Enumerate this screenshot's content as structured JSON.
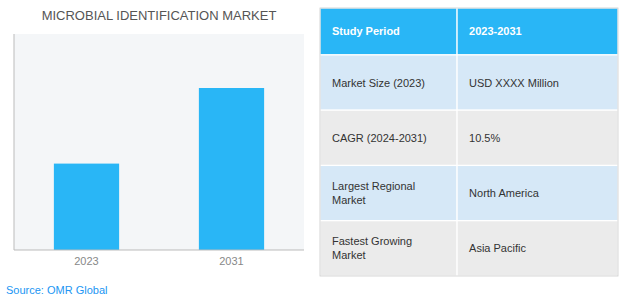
{
  "chart_data": {
    "type": "bar",
    "title": "MICROBIAL IDENTIFICATION MARKET",
    "categories": [
      "2023",
      "2031"
    ],
    "values": [
      0.4,
      0.75
    ],
    "color": "#29B6F6",
    "ylim": [
      0,
      1
    ],
    "tick_labels": "x",
    "source": "Source: OMR Global",
    "table": {
      "header": [
        "Study Period",
        "2023-2031"
      ],
      "rows": [
        [
          "Market Size (2023)",
          "USD XXXX Million"
        ],
        [
          "CAGR (2024-2031)",
          "10.5%"
        ],
        [
          "Largest Regional\nMarket",
          "North America"
        ],
        [
          "Fastest Growing\nMarket",
          "Asia Pacific"
        ]
      ]
    }
  }
}
